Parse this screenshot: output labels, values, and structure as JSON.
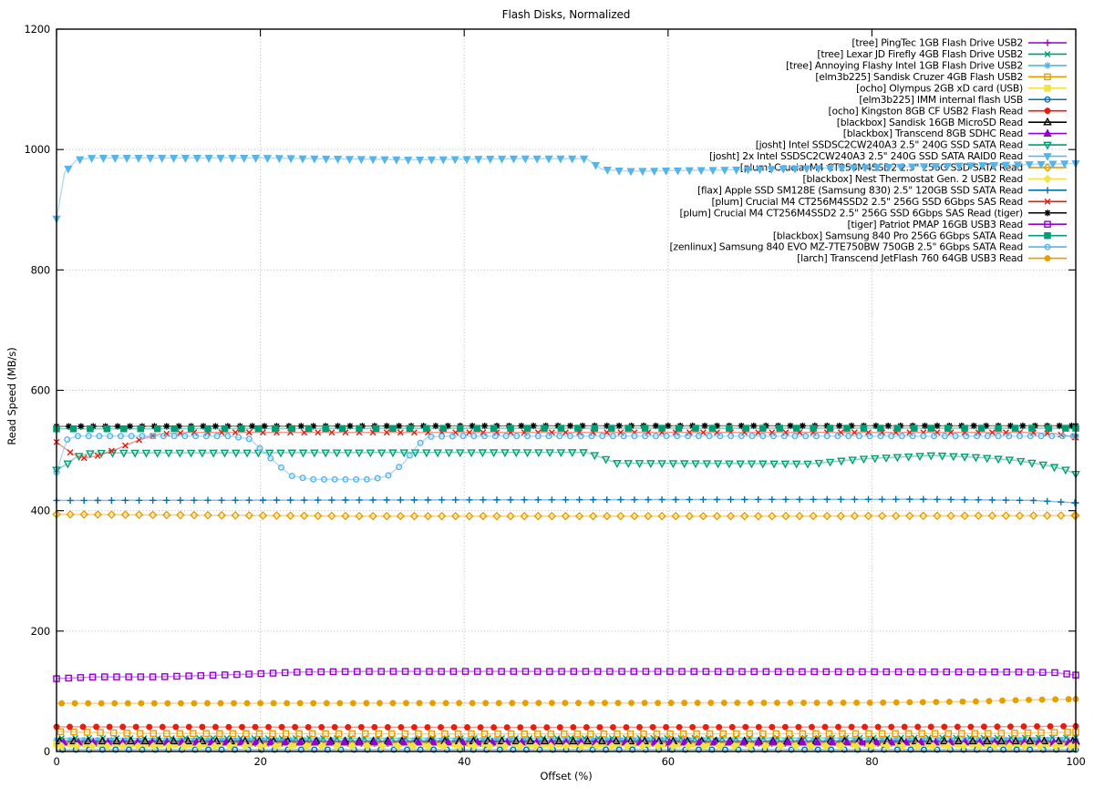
{
  "chart_data": {
    "type": "line",
    "title": "Flash Disks, Normalized",
    "xlabel": "Offset (%)",
    "ylabel": "Read Speed (MB/s)",
    "xlim": [
      0,
      100
    ],
    "ylim": [
      0,
      1200
    ],
    "xticks": [
      0,
      20,
      40,
      60,
      80,
      100
    ],
    "yticks": [
      0,
      200,
      400,
      600,
      800,
      1000,
      1200
    ],
    "grid": true,
    "grid_style": "dotted",
    "legend_position": "top-right-inside",
    "series": [
      {
        "label": "[tree] PingTec 1GB Flash Drive USB2",
        "color": "#9400d3",
        "marker": "plus",
        "marker_step": 1.3,
        "phase": 0,
        "keyframes": [
          [
            0,
            13
          ],
          [
            100,
            13
          ]
        ]
      },
      {
        "label": "[tree] Lexar JD Firefly 4GB Flash Drive USB2",
        "color": "#009e73",
        "marker": "cross",
        "marker_step": 1.35,
        "phase": 0.5,
        "keyframes": [
          [
            0,
            22
          ],
          [
            50,
            22
          ],
          [
            100,
            23
          ]
        ]
      },
      {
        "label": "[tree] Annoying Flashy Intel 1GB Flash Drive USB2",
        "color": "#56b4e9",
        "marker": "asterisk",
        "marker_step": 1.35,
        "phase": 0,
        "keyframes": [
          [
            0,
            19
          ],
          [
            100,
            19
          ]
        ]
      },
      {
        "label": "[elm3b225] Sandisk Cruzer 4GB Flash USB2",
        "color": "#e69f00",
        "marker": "square-open",
        "marker_step": 1.3,
        "phase": 0.4,
        "keyframes": [
          [
            0,
            33
          ],
          [
            8,
            30
          ],
          [
            50,
            29
          ],
          [
            92,
            30
          ],
          [
            100,
            32
          ]
        ]
      },
      {
        "label": "[ocho] Olympus 2GB xD card (USB)",
        "color": "#f0e442",
        "marker": "square-filled",
        "marker_step": 1.45,
        "phase": 0,
        "keyframes": [
          [
            0,
            12
          ],
          [
            100,
            12
          ]
        ]
      },
      {
        "label": "[elm3b225] IMM internal flash USB",
        "color": "#0072b2",
        "marker": "circle-open",
        "marker_step": 1.3,
        "phase": 0.6,
        "keyframes": [
          [
            0,
            3
          ],
          [
            100,
            3
          ]
        ]
      },
      {
        "label": "[ocho] Kingston 8GB CF USB2 Flash Read",
        "color": "#e51e10",
        "marker": "circle-filled",
        "marker_step": 1.3,
        "phase": 0,
        "keyframes": [
          [
            0,
            41
          ],
          [
            45,
            40
          ],
          [
            90,
            41
          ],
          [
            100,
            42
          ]
        ]
      },
      {
        "label": "[blackbox] Sandisk 16GB MicroSD Read",
        "color": "#000000",
        "marker": "triangle-up-open",
        "marker_step": 1.4,
        "phase": 0.3,
        "keyframes": [
          [
            0,
            17
          ],
          [
            100,
            17
          ]
        ]
      },
      {
        "label": "[blackbox] Transcend 8GB SDHC Read",
        "color": "#9400d3",
        "marker": "triangle-up-filled",
        "marker_step": 1.45,
        "phase": 0.7,
        "keyframes": [
          [
            0,
            15
          ],
          [
            100,
            15
          ]
        ]
      },
      {
        "label": "[josht] Intel SSDSC2CW240A3 2.5\" 240G SSD SATA Read",
        "color": "#009e73",
        "marker": "triangle-down-open",
        "marker_step": 1.1,
        "phase": 0,
        "keyframes": [
          [
            0,
            468
          ],
          [
            1,
            477
          ],
          [
            2,
            490
          ],
          [
            3.5,
            496
          ],
          [
            52,
            497
          ],
          [
            53.5,
            488
          ],
          [
            55,
            479
          ],
          [
            74,
            478
          ],
          [
            79,
            486
          ],
          [
            86,
            492
          ],
          [
            90,
            489
          ],
          [
            94,
            484
          ],
          [
            97,
            476
          ],
          [
            99,
            468
          ],
          [
            100,
            461
          ]
        ]
      },
      {
        "label": "[josht] 2x Intel SSDSC2CW240A3 2.5\" 240G SSD SATA RAID0 Read",
        "color": "#56b4e9",
        "marker": "triangle-down-filled",
        "marker_step": 1.15,
        "phase": 0,
        "keyframes": [
          [
            0,
            885
          ],
          [
            0.8,
            962
          ],
          [
            2,
            983
          ],
          [
            3.5,
            986
          ],
          [
            20,
            986
          ],
          [
            35,
            983
          ],
          [
            45,
            985
          ],
          [
            52,
            985
          ],
          [
            53.5,
            967
          ],
          [
            56,
            964
          ],
          [
            65,
            966
          ],
          [
            75,
            969
          ],
          [
            85,
            972
          ],
          [
            92,
            974
          ],
          [
            100,
            977
          ]
        ]
      },
      {
        "label": "[plum] Crucial M4 CT256M4SSD2 2.5\" 256G SSD SATA Read",
        "color": "#e69f00",
        "marker": "diamond-open",
        "marker_step": 1.35,
        "phase": 0,
        "keyframes": [
          [
            0,
            394
          ],
          [
            30,
            391
          ],
          [
            70,
            391
          ],
          [
            100,
            392
          ]
        ]
      },
      {
        "label": "[blackbox] Nest Thermostat Gen. 2 USB2 Read",
        "color": "#f0e442",
        "marker": "diamond-filled",
        "marker_step": 1.5,
        "phase": 0.5,
        "keyframes": [
          [
            0,
            9
          ],
          [
            100,
            9
          ]
        ]
      },
      {
        "label": "[flax] Apple SSD SM128E (Samsung 830) 2.5\" 120GB SSD SATA Read",
        "color": "#0072b2",
        "marker": "plus",
        "marker_step": 1.35,
        "phase": 0,
        "keyframes": [
          [
            0,
            417
          ],
          [
            85,
            419
          ],
          [
            96,
            417
          ],
          [
            100,
            413
          ]
        ]
      },
      {
        "label": "[plum] Crucial M4 CT256M4SSD2 2.5\" 256G SSD 6Gbps SAS Read",
        "color": "#e51e10",
        "marker": "cross",
        "marker_step": 1.35,
        "phase": 0,
        "keyframes": [
          [
            0,
            514
          ],
          [
            1.5,
            495
          ],
          [
            2.5,
            487
          ],
          [
            4,
            491
          ],
          [
            6,
            503
          ],
          [
            8,
            517
          ],
          [
            10,
            527
          ],
          [
            13,
            530
          ],
          [
            60,
            530
          ],
          [
            95,
            530
          ],
          [
            98,
            528
          ],
          [
            100,
            522
          ]
        ]
      },
      {
        "label": "[plum] Crucial M4 CT256M4SSD2 2.5\" 256G SSD 6Gbps SAS Read (tiger)",
        "color": "#000000",
        "marker": "asterisk",
        "marker_step": 1.2,
        "phase": 0,
        "keyframes": [
          [
            0,
            540
          ],
          [
            50,
            541
          ],
          [
            100,
            541
          ]
        ]
      },
      {
        "label": "[tiger] Patriot PMAP 16GB USB3 Read",
        "color": "#9400d3",
        "marker": "square-open",
        "marker_step": 1.18,
        "phase": 0,
        "keyframes": [
          [
            0,
            121
          ],
          [
            4,
            124
          ],
          [
            10,
            124
          ],
          [
            14,
            126
          ],
          [
            18,
            128
          ],
          [
            24,
            132
          ],
          [
            30,
            133
          ],
          [
            60,
            133
          ],
          [
            95,
            132
          ],
          [
            98,
            131
          ],
          [
            100,
            127
          ]
        ]
      },
      {
        "label": "[blackbox] Samsung 840 Pro 256G 6Gbps SATA Read",
        "color": "#009e73",
        "marker": "square-filled",
        "marker_step": 1.65,
        "phase": 0,
        "keyframes": [
          [
            0,
            536
          ],
          [
            50,
            537
          ],
          [
            100,
            537
          ]
        ]
      },
      {
        "label": "[zenlinux] Samsung 840 EVO MZ-7TE750BW 750GB 2.5\" 6Gbps SATA Read",
        "color": "#56b4e9",
        "marker": "circle-open",
        "marker_step": 1.05,
        "phase": 0,
        "keyframes": [
          [
            0,
            464
          ],
          [
            1,
            518
          ],
          [
            2,
            524
          ],
          [
            17,
            524
          ],
          [
            19,
            519
          ],
          [
            21,
            487
          ],
          [
            23,
            458
          ],
          [
            25,
            452
          ],
          [
            31,
            452
          ],
          [
            32.5,
            458
          ],
          [
            34,
            478
          ],
          [
            35.5,
            510
          ],
          [
            36.5,
            523
          ],
          [
            40,
            524
          ],
          [
            100,
            524
          ]
        ]
      },
      {
        "label": "[larch] Transcend JetFlash 760 64GB USB3 Read",
        "color": "#e69f00",
        "marker": "circle-filled",
        "marker_step": 1.3,
        "phase": 0.5,
        "keyframes": [
          [
            0,
            80
          ],
          [
            80,
            81
          ],
          [
            90,
            83
          ],
          [
            96,
            86
          ],
          [
            100,
            87
          ]
        ]
      }
    ]
  }
}
